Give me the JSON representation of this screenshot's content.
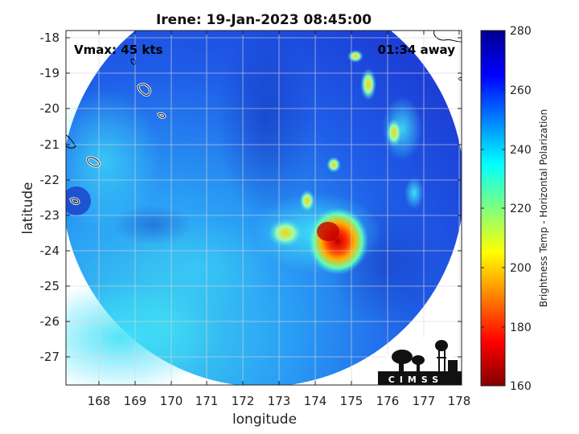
{
  "title": "Irene: 19-Jan-2023 08:45:00",
  "vmax_label": "Vmax: 45 kts",
  "time_away_label": "01:34 away",
  "xlabel": "longitude",
  "ylabel": "latitude",
  "x_ticks": [
    "168",
    "169",
    "170",
    "171",
    "172",
    "173",
    "174",
    "175",
    "176",
    "177",
    "178"
  ],
  "y_ticks": [
    "-18",
    "-19",
    "-20",
    "-21",
    "-22",
    "-23",
    "-24",
    "-25",
    "-26",
    "-27"
  ],
  "colorbar": {
    "label": "Brightness Temp - Horizontal Polarization",
    "ticks": [
      "280",
      "260",
      "240",
      "220",
      "200",
      "180",
      "160"
    ],
    "min": 160,
    "max": 280
  },
  "logo_text": "CIMSS",
  "map_extent": {
    "lon": [
      167.2,
      178.0
    ],
    "lat": [
      -27.85,
      -17.8
    ]
  },
  "swath_center": {
    "lon": 172.6,
    "lat": -22.85
  }
}
